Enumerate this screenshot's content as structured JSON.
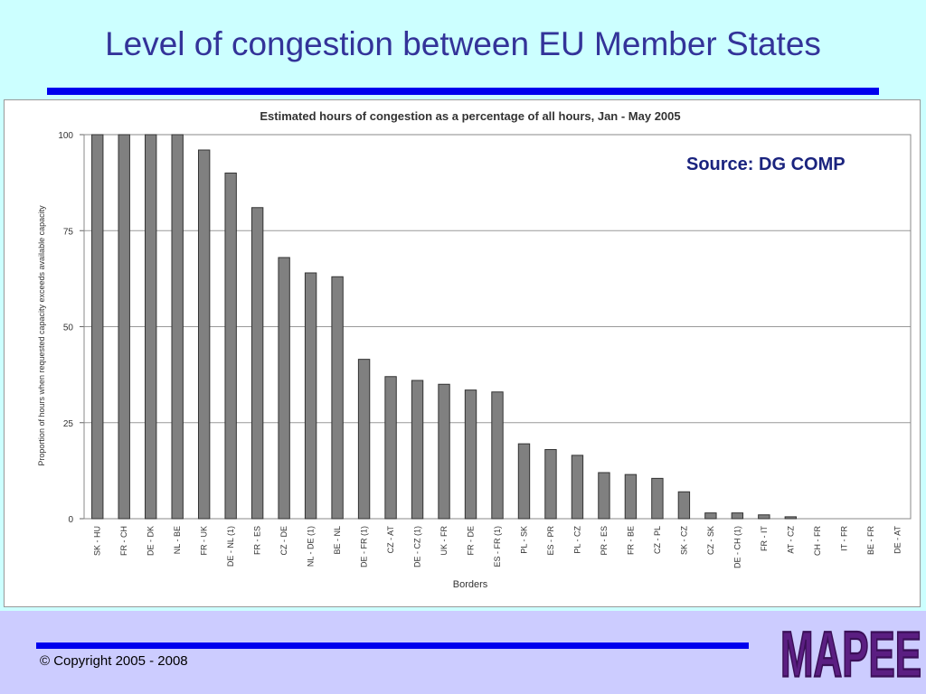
{
  "slide": {
    "title": "Level of congestion between EU Member States",
    "source": "Source: DG COMP",
    "copyright": "© Copyright 2005 - 2008",
    "logo_text": "MAPEE"
  },
  "colors": {
    "background": "#ccffff",
    "title": "#333399",
    "rule": "#0000ee",
    "bottom_band": "#ccccff",
    "bar_fill": "#808080",
    "logo": "#5b1e82"
  },
  "chart_data": {
    "type": "bar",
    "title": "Estimated hours of congestion as a percentage of all hours, Jan - May 2005",
    "xlabel": "Borders",
    "ylabel": "Proportion of hours when requested capacity exceeds available capacity",
    "ylim": [
      0,
      100
    ],
    "yticks": [
      0,
      25,
      50,
      75,
      100
    ],
    "grid": true,
    "categories": [
      "SK - HU",
      "FR - CH",
      "DE - DK",
      "NL - BE",
      "FR - UK",
      "DE - NL (1)",
      "FR - ES",
      "CZ - DE",
      "NL - DE (1)",
      "BE - NL",
      "DE - FR (1)",
      "CZ - AT",
      "DE - CZ (1)",
      "UK - FR",
      "FR - DE",
      "ES - FR (1)",
      "PL - SK",
      "ES - PR",
      "PL - CZ",
      "PR - ES",
      "FR - BE",
      "CZ - PL",
      "SK - CZ",
      "CZ - SK",
      "DE - CH (1)",
      "FR - IT",
      "AT - CZ",
      "CH - FR",
      "IT - FR",
      "BE - FR",
      "DE - AT"
    ],
    "values": [
      100,
      100,
      100,
      100,
      96,
      90,
      81,
      68,
      64,
      63,
      41.5,
      37,
      36,
      35,
      33.5,
      33,
      19.5,
      18,
      16.5,
      12,
      11.5,
      10.5,
      7,
      1.5,
      1.5,
      1,
      0.5,
      0,
      0,
      0,
      0
    ]
  }
}
